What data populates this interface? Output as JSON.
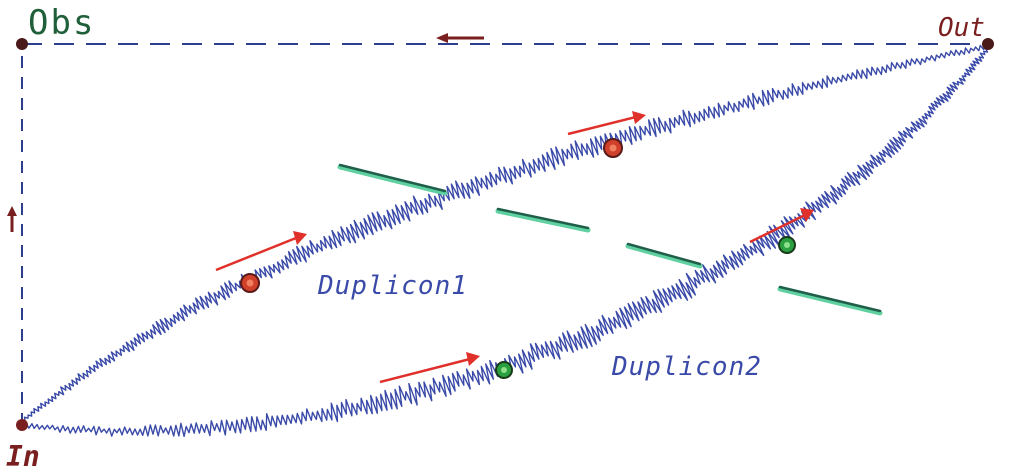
{
  "labels": {
    "obs": "Obs",
    "out": "Out",
    "in": "In",
    "duplicon1": "Duplicon1",
    "duplicon2": "Duplicon2"
  },
  "colors": {
    "wavy_path": "#3a4aa8",
    "dashed_path": "#2c3e8c",
    "arrow": "#e0302a",
    "direction_arrow": "#7a1f1f",
    "endpoint": "#4a1a1a",
    "duplicon1_marker": "#d0402a",
    "duplicon2_marker": "#2aa040",
    "segment": "#1f5f4a",
    "segment_highlight": "#5fd0a0"
  }
}
